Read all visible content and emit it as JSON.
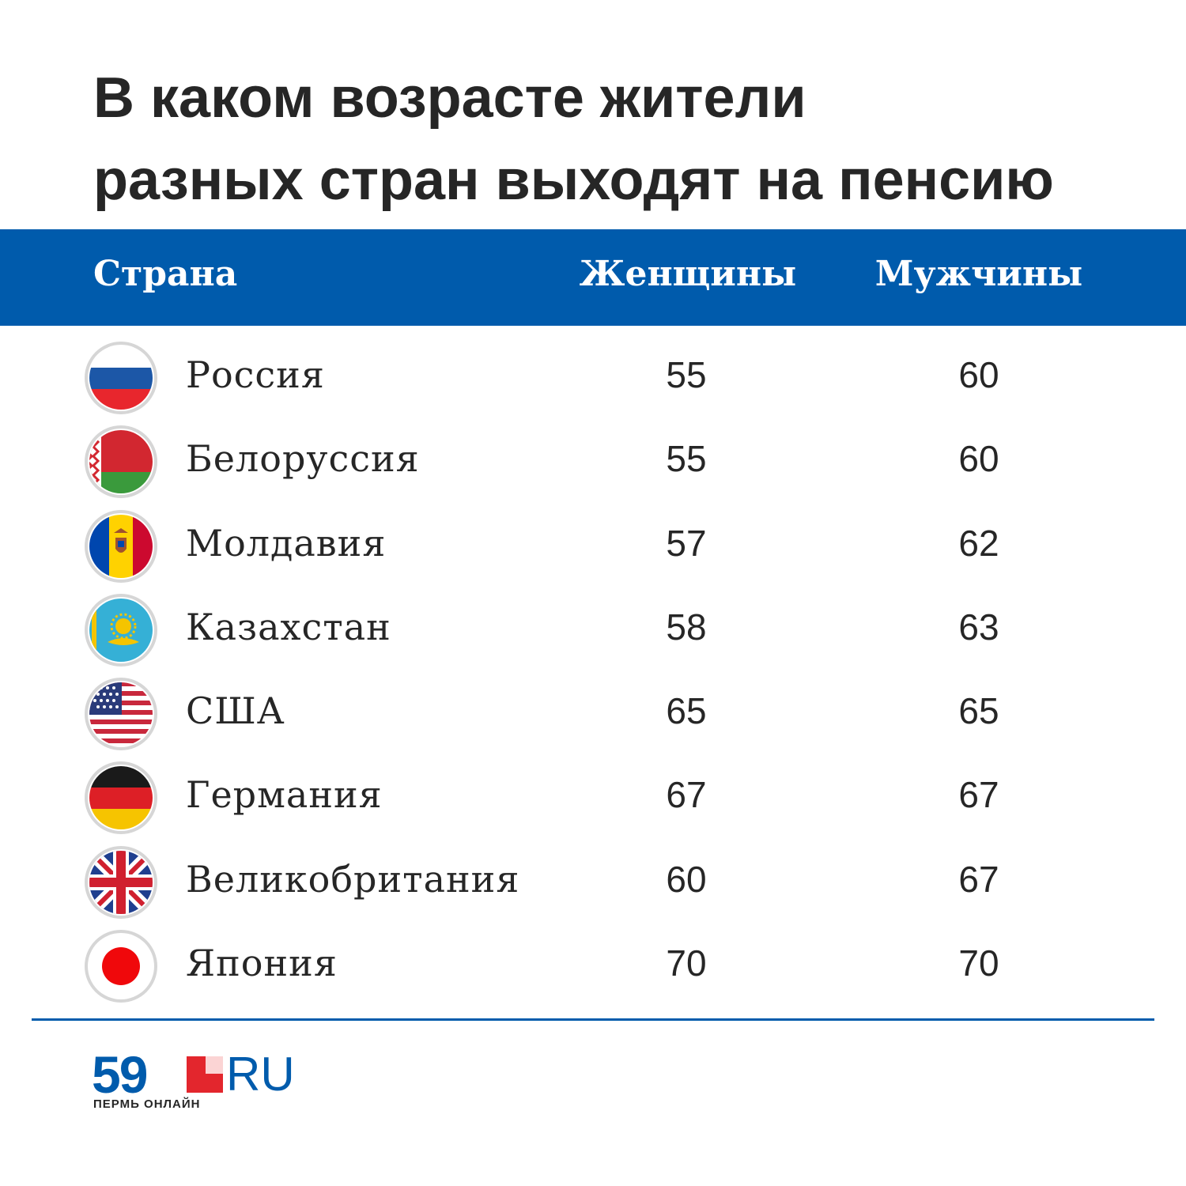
{
  "title_lines": [
    "В каком возрасте жители",
    "разных стран выходят на пенсию"
  ],
  "columns": {
    "country": "Страна",
    "women": "Женщины",
    "men": "Мужчины"
  },
  "rows": [
    {
      "country": "Россия",
      "flag": "russia-flag-icon",
      "women": "55",
      "men": "60"
    },
    {
      "country": "Белоруссия",
      "flag": "belarus-flag-icon",
      "women": "55",
      "men": "60"
    },
    {
      "country": "Молдавия",
      "flag": "moldova-flag-icon",
      "women": "57",
      "men": "62"
    },
    {
      "country": "Казахстан",
      "flag": "kazakhstan-flag-icon",
      "women": "58",
      "men": "63"
    },
    {
      "country": "США",
      "flag": "usa-flag-icon",
      "women": "65",
      "men": "65"
    },
    {
      "country": "Германия",
      "flag": "germany-flag-icon",
      "women": "67",
      "men": "67"
    },
    {
      "country": "Великобритания",
      "flag": "uk-flag-icon",
      "women": "60",
      "men": "67"
    },
    {
      "country": "Япония",
      "flag": "japan-flag-icon",
      "women": "70",
      "men": "70"
    }
  ],
  "logo": {
    "number": "59",
    "domain": "RU",
    "subtitle": "ПЕРМЬ ОНЛАЙН"
  },
  "colors": {
    "header": "#005bac",
    "text": "#262626",
    "accent_red": "#e3262d"
  },
  "chart_data": {
    "type": "table",
    "title": "В каком возрасте жители разных стран выходят на пенсию",
    "columns": [
      "Страна",
      "Женщины",
      "Мужчины"
    ],
    "categories": [
      "Россия",
      "Белоруссия",
      "Молдавия",
      "Казахстан",
      "США",
      "Германия",
      "Великобритания",
      "Япония"
    ],
    "series": [
      {
        "name": "Женщины",
        "values": [
          55,
          55,
          57,
          58,
          65,
          67,
          60,
          70
        ]
      },
      {
        "name": "Мужчины",
        "values": [
          60,
          60,
          62,
          63,
          65,
          67,
          67,
          70
        ]
      }
    ]
  }
}
